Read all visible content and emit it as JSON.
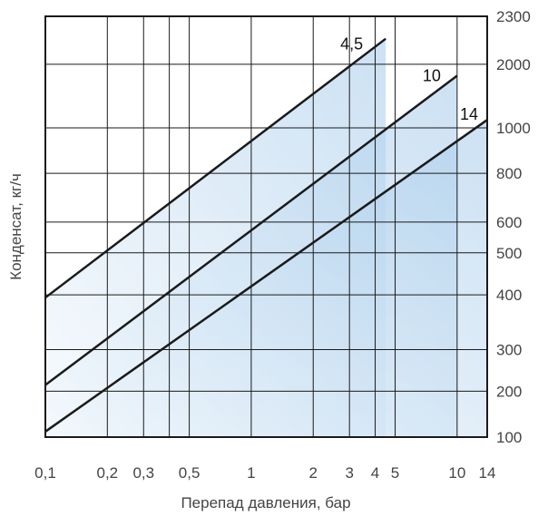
{
  "chart_data": {
    "type": "line",
    "title": "",
    "xlabel": "Перепад давления, бар",
    "ylabel": "Конденсат, кг/ч",
    "x_scale": "log",
    "xlim": [
      0.1,
      14
    ],
    "x_ticks": [
      {
        "value": 0.1,
        "label": "0,1"
      },
      {
        "value": 0.2,
        "label": "0,2"
      },
      {
        "value": 0.3,
        "label": "0,3"
      },
      {
        "value": 0.5,
        "label": "0,5"
      },
      {
        "value": 1,
        "label": "1"
      },
      {
        "value": 2,
        "label": "2"
      },
      {
        "value": 3,
        "label": "3"
      },
      {
        "value": 4,
        "label": "4"
      },
      {
        "value": 5,
        "label": "5"
      },
      {
        "value": 10,
        "label": "10"
      },
      {
        "value": 14,
        "label": "14"
      }
    ],
    "x_grid": [
      0.1,
      0.2,
      0.3,
      0.4,
      0.5,
      1,
      2,
      3,
      4,
      5,
      10,
      14
    ],
    "y_scale": "nonuniform",
    "y_ticks": [
      {
        "value": 100,
        "label": "100"
      },
      {
        "value": 200,
        "label": "200"
      },
      {
        "value": 300,
        "label": "300"
      },
      {
        "value": 400,
        "label": "400"
      },
      {
        "value": 500,
        "label": "500"
      },
      {
        "value": 600,
        "label": "600"
      },
      {
        "value": 800,
        "label": "800"
      },
      {
        "value": 1000,
        "label": "1000"
      },
      {
        "value": 2000,
        "label": "2000"
      },
      {
        "value": 2300,
        "label": "2300"
      }
    ],
    "grid": true,
    "series": [
      {
        "name": "4,5",
        "color": "#1a1a1a",
        "points": [
          [
            0.1,
            395
          ],
          [
            4.5,
            2160
          ]
        ],
        "shade_until_x": 4.5
      },
      {
        "name": "10",
        "color": "#1a1a1a",
        "points": [
          [
            0.1,
            215
          ],
          [
            10,
            1820
          ]
        ],
        "shade_until_x": 10
      },
      {
        "name": "14",
        "color": "#1a1a1a",
        "points": [
          [
            0.1,
            112
          ],
          [
            14,
            1125
          ]
        ],
        "shade_until_x": 14
      }
    ],
    "colors": {
      "fill_dark": "#a3c9ea",
      "fill_light": "#f1f7fc",
      "grid": "#1a1a1a",
      "line": "#1a1a1a"
    }
  }
}
